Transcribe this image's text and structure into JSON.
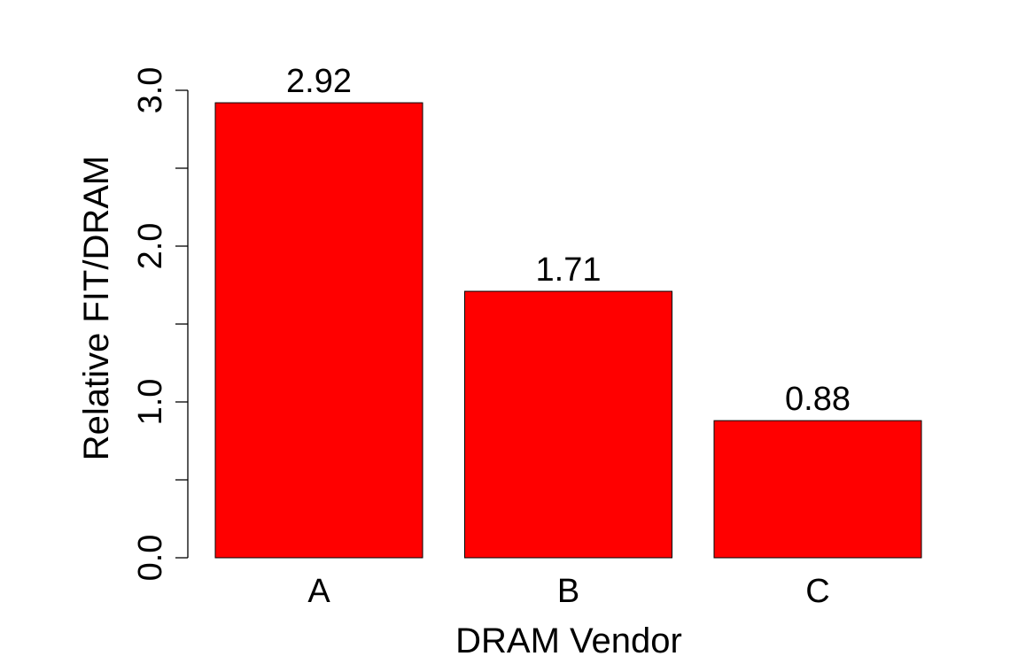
{
  "chart_data": {
    "type": "bar",
    "title": "",
    "xlabel": "DRAM Vendor",
    "ylabel": "Relative FIT/DRAM",
    "categories": [
      "A",
      "B",
      "C"
    ],
    "values": [
      2.92,
      1.71,
      0.88
    ],
    "value_labels": [
      "2.92",
      "1.71",
      "0.88"
    ],
    "ylim": [
      0,
      3.0
    ],
    "yticks": [
      0,
      0.5,
      1.0,
      1.5,
      2.0,
      2.5,
      3.0
    ],
    "ytick_labels": [
      "0.0",
      "",
      "1.0",
      "",
      "2.0",
      "",
      "3.0"
    ],
    "bar_color": "#ff0000",
    "grid": false,
    "legend": "none"
  }
}
